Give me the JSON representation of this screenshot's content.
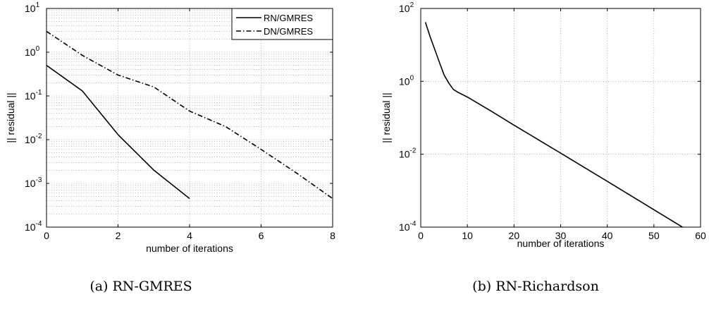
{
  "chart_data": [
    {
      "type": "line",
      "caption": "(a) RN-GMRES",
      "xlabel": "number of iterations",
      "ylabel": "|| residual ||",
      "xlim": [
        0,
        8
      ],
      "ylim": [
        0.0001,
        10
      ],
      "yscale": "log",
      "xticks": [
        0,
        2,
        4,
        6,
        8
      ],
      "yticks": [
        {
          "base": "10",
          "exp": "1",
          "value": 10
        },
        {
          "base": "10",
          "exp": "0",
          "value": 1
        },
        {
          "base": "10",
          "exp": "-1",
          "value": 0.1
        },
        {
          "base": "10",
          "exp": "-2",
          "value": 0.01
        },
        {
          "base": "10",
          "exp": "-3",
          "value": 0.001
        },
        {
          "base": "10",
          "exp": "-4",
          "value": 0.0001
        }
      ],
      "grid": true,
      "legend_position": "top-right",
      "series": [
        {
          "name": "RN/GMRES",
          "style": "solid",
          "color": "#000000",
          "x": [
            0,
            1,
            2,
            3,
            4
          ],
          "y": [
            0.5,
            0.13,
            0.013,
            0.002,
            0.00045
          ]
        },
        {
          "name": "DN/GMRES",
          "style": "dashdot",
          "color": "#000000",
          "x": [
            0,
            1,
            2,
            3,
            4,
            5,
            6,
            7,
            8
          ],
          "y": [
            3.0,
            0.85,
            0.3,
            0.16,
            0.045,
            0.02,
            0.006,
            0.0017,
            0.00045
          ]
        }
      ]
    },
    {
      "type": "line",
      "caption": "(b) RN-Richardson",
      "xlabel": "number of iterations",
      "ylabel": "|| residual ||",
      "xlim": [
        0,
        60
      ],
      "ylim": [
        0.0001,
        100
      ],
      "yscale": "log",
      "xticks": [
        0,
        10,
        20,
        30,
        40,
        50,
        60
      ],
      "yticks": [
        {
          "base": "10",
          "exp": "2",
          "value": 100
        },
        {
          "base": "10",
          "exp": "0",
          "value": 1
        },
        {
          "base": "10",
          "exp": "-2",
          "value": 0.01
        },
        {
          "base": "10",
          "exp": "-4",
          "value": 0.0001
        }
      ],
      "grid": true,
      "series": [
        {
          "style": "solid",
          "color": "#000000",
          "x": [
            1,
            2,
            3,
            4,
            5,
            6,
            7,
            8,
            10,
            15,
            20,
            30,
            40,
            50,
            60
          ],
          "y": [
            42,
            17,
            7.5,
            3.3,
            1.5,
            0.9,
            0.6,
            0.5,
            0.37,
            0.155,
            0.063,
            0.0107,
            0.0018,
            0.0003,
            5e-05
          ]
        }
      ]
    }
  ]
}
